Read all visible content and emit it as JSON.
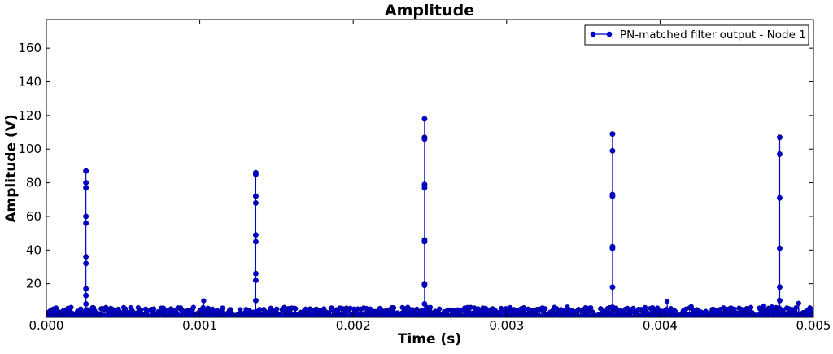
{
  "chart_data": {
    "type": "line",
    "title": "Amplitude",
    "xlabel": "Time (s)",
    "ylabel": "Amplitude (V)",
    "xlim": [
      0,
      0.005
    ],
    "ylim": [
      0,
      177
    ],
    "xticks": [
      0,
      0.001,
      0.002,
      0.003,
      0.004,
      0.005
    ],
    "xtick_labels": [
      "0.000",
      "0.001",
      "0.002",
      "0.003",
      "0.004",
      "0.005"
    ],
    "yticks": [
      20,
      40,
      60,
      80,
      100,
      120,
      140,
      160
    ],
    "ytick_labels": [
      "20",
      "40",
      "60",
      "80",
      "100",
      "120",
      "140",
      "160"
    ],
    "grid": false,
    "legend_position": "top-right",
    "series": [
      {
        "name": "PN-matched filter output - Node 1",
        "color": "#0000cc",
        "marker": "circle",
        "noise_floor_max": 10,
        "peaks": [
          {
            "x": 0.000258,
            "y": [
              87,
              80,
              77,
              60,
              56,
              36,
              32,
              17,
              13,
              8
            ]
          },
          {
            "x": 0.001365,
            "y": [
              86,
              85,
              72,
              68,
              49,
              45,
              26,
              22,
              10
            ]
          },
          {
            "x": 0.002465,
            "y": [
              118,
              107,
              106,
              79,
              77,
              46,
              45,
              20,
              19,
              8
            ]
          },
          {
            "x": 0.00369,
            "y": [
              109,
              99,
              73,
              72,
              42,
              41,
              18,
              6
            ]
          },
          {
            "x": 0.00478,
            "y": [
              107,
              97,
              71,
              41,
              18,
              10
            ]
          }
        ]
      }
    ]
  }
}
